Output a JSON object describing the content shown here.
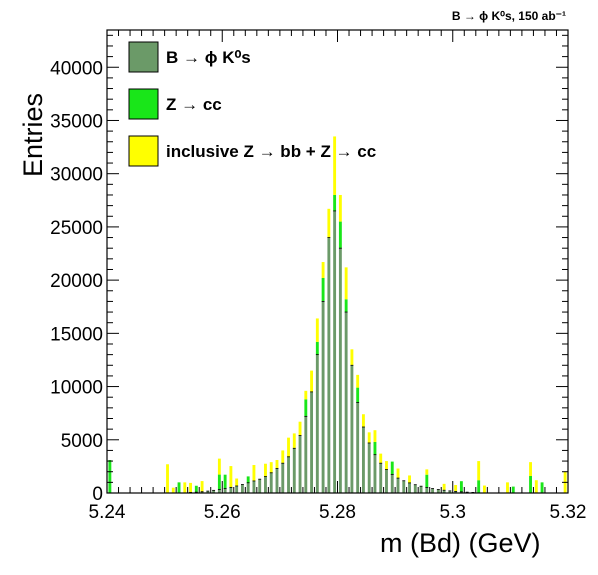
{
  "chart_data": {
    "type": "histogram-stacked",
    "title": "",
    "annotation": "B → ϕ K⁰s, 150 ab⁻¹",
    "xlabel": "m (Bd) (GeV)",
    "ylabel": "Entries",
    "xlim": [
      5.24,
      5.32
    ],
    "ylim": [
      0,
      43500
    ],
    "x_ticks": [
      "5.24",
      "5.26",
      "5.28",
      "5.3",
      "5.32"
    ],
    "y_ticks": [
      "0",
      "5000",
      "10000",
      "15000",
      "20000",
      "25000",
      "30000",
      "35000",
      "40000"
    ],
    "bin_width": 0.0005,
    "legend_position": "top-left",
    "colors": {
      "signal": "#6b9a68",
      "zcc": "#19e619",
      "inclusive": "#ffff00",
      "outline": "#000000"
    },
    "series": [
      {
        "name": "B → ϕ K⁰s",
        "style": "signal",
        "bins": [
          {
            "x": 5.2545,
            "y": 50
          },
          {
            "x": 5.2555,
            "y": 80
          },
          {
            "x": 5.2565,
            "y": 120
          },
          {
            "x": 5.2575,
            "y": 180
          },
          {
            "x": 5.2585,
            "y": 250
          },
          {
            "x": 5.2595,
            "y": 330
          },
          {
            "x": 5.2605,
            "y": 420
          },
          {
            "x": 5.2615,
            "y": 530
          },
          {
            "x": 5.2625,
            "y": 660
          },
          {
            "x": 5.2635,
            "y": 800
          },
          {
            "x": 5.2645,
            "y": 960
          },
          {
            "x": 5.2655,
            "y": 1130
          },
          {
            "x": 5.2665,
            "y": 1300
          },
          {
            "x": 5.2675,
            "y": 1550
          },
          {
            "x": 5.2685,
            "y": 1900
          },
          {
            "x": 5.2695,
            "y": 2300
          },
          {
            "x": 5.2705,
            "y": 2800
          },
          {
            "x": 5.2715,
            "y": 3400
          },
          {
            "x": 5.2725,
            "y": 4200
          },
          {
            "x": 5.2735,
            "y": 5400
          },
          {
            "x": 5.2745,
            "y": 7200
          },
          {
            "x": 5.2755,
            "y": 9500
          },
          {
            "x": 5.2765,
            "y": 13000
          },
          {
            "x": 5.2775,
            "y": 18000
          },
          {
            "x": 5.2785,
            "y": 24000
          },
          {
            "x": 5.2795,
            "y": 26500
          },
          {
            "x": 5.2805,
            "y": 23000
          },
          {
            "x": 5.2815,
            "y": 17000
          },
          {
            "x": 5.2825,
            "y": 12000
          },
          {
            "x": 5.2835,
            "y": 8500
          },
          {
            "x": 5.2845,
            "y": 6200
          },
          {
            "x": 5.2855,
            "y": 4700
          },
          {
            "x": 5.2865,
            "y": 3600
          },
          {
            "x": 5.2875,
            "y": 2800
          },
          {
            "x": 5.2885,
            "y": 2200
          },
          {
            "x": 5.2895,
            "y": 1750
          },
          {
            "x": 5.2905,
            "y": 1400
          },
          {
            "x": 5.2915,
            "y": 1150
          },
          {
            "x": 5.2925,
            "y": 950
          },
          {
            "x": 5.2935,
            "y": 780
          },
          {
            "x": 5.2945,
            "y": 640
          },
          {
            "x": 5.2955,
            "y": 520
          },
          {
            "x": 5.2965,
            "y": 420
          },
          {
            "x": 5.2975,
            "y": 330
          },
          {
            "x": 5.2985,
            "y": 260
          },
          {
            "x": 5.2995,
            "y": 200
          },
          {
            "x": 5.3005,
            "y": 150
          },
          {
            "x": 5.3015,
            "y": 110
          },
          {
            "x": 5.3025,
            "y": 80
          },
          {
            "x": 5.3035,
            "y": 55
          }
        ]
      },
      {
        "name": "Z → cc",
        "style": "zcc",
        "bins": [
          {
            "x": 5.2405,
            "y": 3100
          },
          {
            "x": 5.2525,
            "y": 1000
          },
          {
            "x": 5.2555,
            "y": 600
          },
          {
            "x": 5.2595,
            "y": 1400
          },
          {
            "x": 5.2605,
            "y": 1300
          },
          {
            "x": 5.2645,
            "y": 600
          },
          {
            "x": 5.2745,
            "y": 1600
          },
          {
            "x": 5.2765,
            "y": 1200
          },
          {
            "x": 5.2775,
            "y": 2200
          },
          {
            "x": 5.2795,
            "y": 1500
          },
          {
            "x": 5.2805,
            "y": 2500
          },
          {
            "x": 5.2815,
            "y": 1200
          },
          {
            "x": 5.2835,
            "y": 1400
          },
          {
            "x": 5.2865,
            "y": 1200
          },
          {
            "x": 5.2895,
            "y": 1200
          },
          {
            "x": 5.2955,
            "y": 1200
          },
          {
            "x": 5.3015,
            "y": 1000
          },
          {
            "x": 5.3045,
            "y": 1200
          },
          {
            "x": 5.3105,
            "y": 600
          },
          {
            "x": 5.3135,
            "y": 1600
          },
          {
            "x": 5.3155,
            "y": 1000
          }
        ]
      },
      {
        "name": "inclusive Z → bb + Z → cc",
        "style": "inclusive",
        "bins": [
          {
            "x": 5.2405,
            "y": 0
          },
          {
            "x": 5.2505,
            "y": 2700
          },
          {
            "x": 5.2515,
            "y": 500
          },
          {
            "x": 5.2535,
            "y": 1000
          },
          {
            "x": 5.2545,
            "y": 900
          },
          {
            "x": 5.2565,
            "y": 1000
          },
          {
            "x": 5.2595,
            "y": 1500
          },
          {
            "x": 5.2615,
            "y": 2000
          },
          {
            "x": 5.2625,
            "y": 700
          },
          {
            "x": 5.2655,
            "y": 1500
          },
          {
            "x": 5.2675,
            "y": 1200
          },
          {
            "x": 5.2685,
            "y": 1000
          },
          {
            "x": 5.2695,
            "y": 800
          },
          {
            "x": 5.2705,
            "y": 1200
          },
          {
            "x": 5.2715,
            "y": 1800
          },
          {
            "x": 5.2725,
            "y": 1400
          },
          {
            "x": 5.2735,
            "y": 1300
          },
          {
            "x": 5.2745,
            "y": 800
          },
          {
            "x": 5.2755,
            "y": 2000
          },
          {
            "x": 5.2765,
            "y": 2200
          },
          {
            "x": 5.2775,
            "y": 1500
          },
          {
            "x": 5.2785,
            "y": 2700
          },
          {
            "x": 5.2795,
            "y": 5500
          },
          {
            "x": 5.2805,
            "y": 2500
          },
          {
            "x": 5.2815,
            "y": 3000
          },
          {
            "x": 5.2825,
            "y": 1500
          },
          {
            "x": 5.2835,
            "y": 1200
          },
          {
            "x": 5.2845,
            "y": 1200
          },
          {
            "x": 5.2855,
            "y": 1000
          },
          {
            "x": 5.2865,
            "y": 1100
          },
          {
            "x": 5.2875,
            "y": 900
          },
          {
            "x": 5.2885,
            "y": 800
          },
          {
            "x": 5.2905,
            "y": 900
          },
          {
            "x": 5.2925,
            "y": 700
          },
          {
            "x": 5.2955,
            "y": 500
          },
          {
            "x": 5.2985,
            "y": 600
          },
          {
            "x": 5.3005,
            "y": 600
          },
          {
            "x": 5.3045,
            "y": 1800
          },
          {
            "x": 5.3055,
            "y": 700
          },
          {
            "x": 5.3095,
            "y": 1000
          },
          {
            "x": 5.3135,
            "y": 1300
          },
          {
            "x": 5.3145,
            "y": 1200
          },
          {
            "x": 5.3195,
            "y": 2000
          }
        ]
      }
    ]
  }
}
